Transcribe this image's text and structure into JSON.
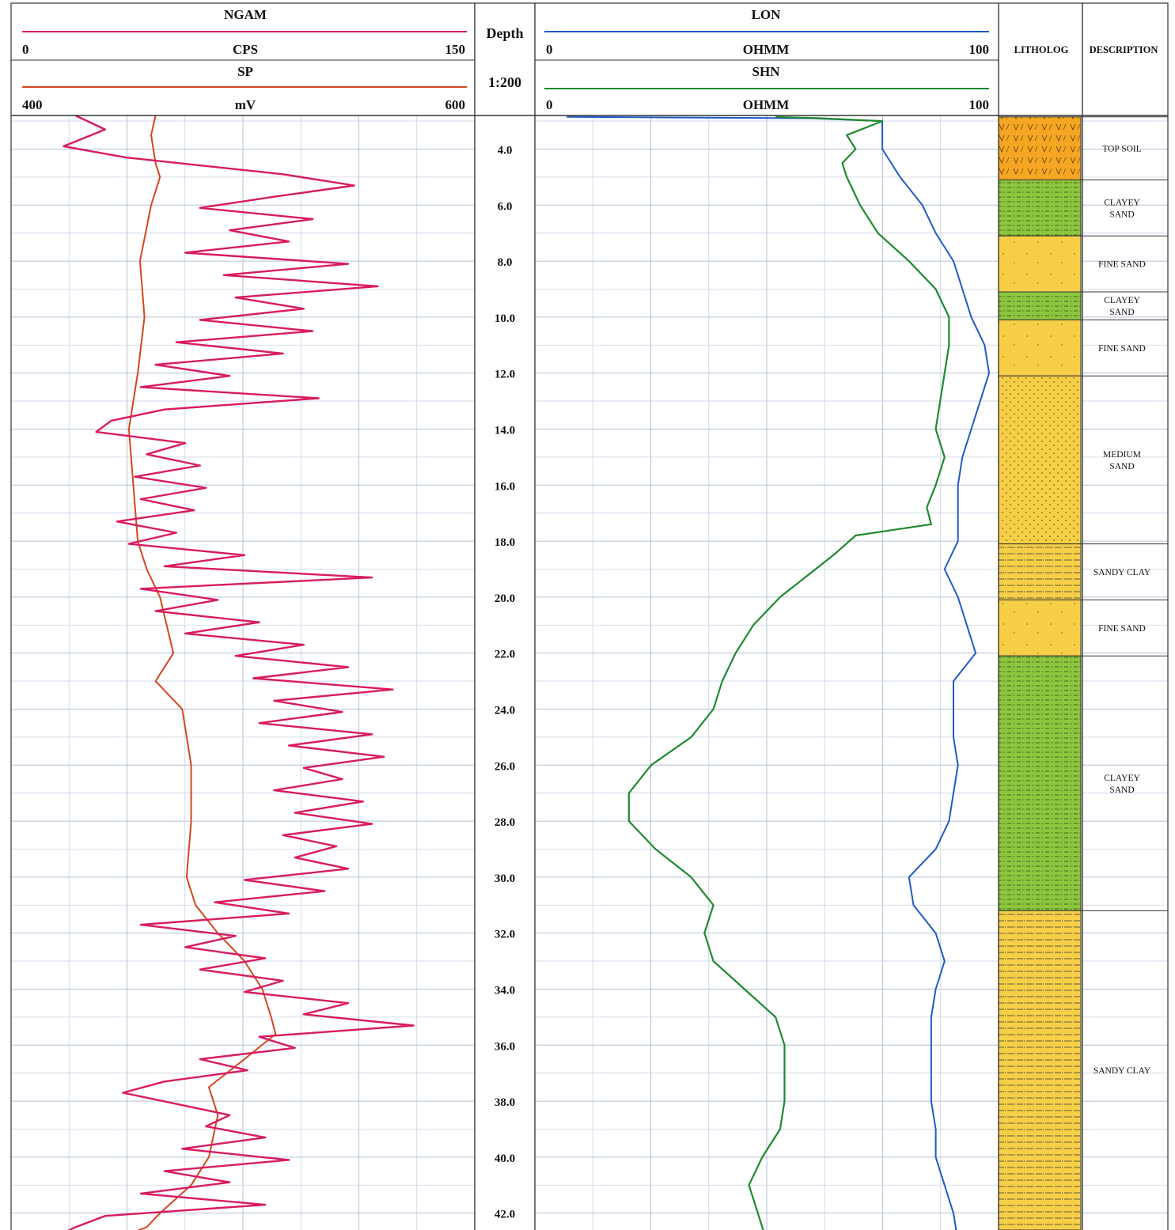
{
  "chart_data": {
    "type": "well-log",
    "depth_track": {
      "title": "Depth",
      "scale": "1:200",
      "range": [
        2.8,
        43.0
      ],
      "ticks": [
        "4.0",
        "6.0",
        "8.0",
        "10.0",
        "12.0",
        "14.0",
        "16.0",
        "18.0",
        "20.0",
        "22.0",
        "24.0",
        "26.0",
        "28.0",
        "30.0",
        "32.0",
        "34.0",
        "36.0",
        "38.0",
        "40.0",
        "42.0"
      ]
    },
    "track1": {
      "curves": [
        {
          "name": "NGAM",
          "unit": "CPS",
          "min": "0",
          "max": "150",
          "range": [
            0,
            150
          ],
          "color": "#d81b60",
          "depth": [
            2.8,
            3.3,
            3.9,
            4.3,
            4.9,
            5.3,
            5.7,
            6.1,
            6.5,
            6.9,
            7.3,
            7.7,
            8.1,
            8.5,
            8.9,
            9.3,
            9.7,
            10.1,
            10.5,
            10.9,
            11.3,
            11.7,
            12.1,
            12.5,
            12.9,
            13.3,
            13.7,
            14.1,
            14.5,
            14.9,
            15.3,
            15.7,
            16.1,
            16.5,
            16.9,
            17.3,
            17.7,
            18.1,
            18.5,
            18.9,
            19.3,
            19.7,
            20.1,
            20.5,
            20.9,
            21.3,
            21.7,
            22.1,
            22.5,
            22.9,
            23.3,
            23.7,
            24.1,
            24.5,
            24.9,
            25.3,
            25.7,
            26.1,
            26.5,
            26.9,
            27.3,
            27.7,
            28.1,
            28.5,
            28.9,
            29.3,
            29.7,
            30.1,
            30.5,
            30.9,
            31.3,
            31.7,
            32.1,
            32.5,
            32.9,
            33.3,
            33.7,
            34.1,
            34.5,
            34.9,
            35.3,
            35.7,
            36.1,
            36.5,
            36.9,
            37.3,
            37.7,
            38.1,
            38.5,
            38.9,
            39.3,
            39.7,
            40.1,
            40.5,
            40.9,
            41.3,
            41.7,
            42.1,
            42.5,
            42.9
          ],
          "value": [
            18,
            28,
            14,
            35,
            88,
            112,
            85,
            60,
            98,
            70,
            90,
            55,
            110,
            68,
            120,
            72,
            95,
            60,
            98,
            52,
            88,
            45,
            70,
            40,
            100,
            48,
            30,
            25,
            55,
            42,
            60,
            38,
            62,
            40,
            58,
            32,
            52,
            36,
            75,
            48,
            118,
            40,
            66,
            45,
            80,
            55,
            95,
            72,
            110,
            78,
            125,
            85,
            108,
            80,
            118,
            90,
            122,
            95,
            108,
            85,
            115,
            92,
            118,
            88,
            106,
            92,
            110,
            75,
            102,
            65,
            90,
            40,
            72,
            55,
            82,
            60,
            88,
            75,
            110,
            95,
            132,
            80,
            92,
            60,
            76,
            48,
            34,
            52,
            70,
            62,
            82,
            54,
            90,
            48,
            70,
            40,
            82,
            28,
            18,
            10
          ]
        },
        {
          "name": "SP",
          "unit": "mV",
          "min": "400",
          "max": "600",
          "range": [
            400,
            600
          ],
          "color": "#d6451e",
          "depth": [
            2.8,
            3.5,
            4.5,
            5.0,
            6.0,
            8.0,
            10.0,
            12.0,
            13.0,
            14.0,
            16.0,
            18.0,
            19.0,
            20.0,
            22.0,
            23.0,
            24.0,
            26.0,
            28.0,
            30.0,
            31.0,
            32.0,
            33.0,
            34.0,
            35.0,
            35.6,
            36.5,
            37.5,
            38.5,
            40.0,
            41.0,
            42.0,
            42.5,
            43.0
          ],
          "value": [
            460,
            458,
            460,
            462,
            458,
            453,
            455,
            452,
            450,
            448,
            450,
            452,
            456,
            462,
            468,
            460,
            472,
            476,
            476,
            474,
            478,
            488,
            500,
            508,
            512,
            514,
            500,
            484,
            488,
            484,
            476,
            462,
            456,
            440
          ]
        }
      ]
    },
    "track2": {
      "curves": [
        {
          "name": "LON",
          "unit": "OHMM",
          "min": "0",
          "max": "100",
          "range": [
            0,
            100
          ],
          "color": "#1e5bc6",
          "depth": [
            2.85,
            2.9,
            3.0,
            4.0,
            5.0,
            6.0,
            7.0,
            8.0,
            9.0,
            10.0,
            11.0,
            12.0,
            13.0,
            14.0,
            15.0,
            16.0,
            17.0,
            18.0,
            19.0,
            20.0,
            21.0,
            22.0,
            23.0,
            24.0,
            25.0,
            26.0,
            27.0,
            28.0,
            29.0,
            30.0,
            31.0,
            32.0,
            33.0,
            34.0,
            35.0,
            36.0,
            37.0,
            38.0,
            39.0,
            40.0,
            41.0,
            42.0,
            43.0
          ],
          "value": [
            5,
            60,
            76,
            76,
            80,
            85,
            88,
            92,
            94,
            96,
            99,
            100,
            98,
            96,
            94,
            93,
            93,
            93,
            90,
            93,
            95,
            97,
            92,
            92,
            92,
            93,
            92,
            91,
            88,
            82,
            83,
            88,
            90,
            88,
            87,
            87,
            87,
            87,
            88,
            88,
            90,
            92,
            93
          ]
        },
        {
          "name": "SHN",
          "unit": "OHMM",
          "min": "0",
          "max": "100",
          "range": [
            0,
            100
          ],
          "color": "#1f8a2f",
          "depth": [
            2.85,
            2.9,
            3.0,
            3.5,
            4.0,
            4.5,
            5.0,
            6.0,
            7.0,
            8.0,
            9.0,
            10.0,
            11.0,
            12.0,
            13.0,
            14.0,
            15.0,
            16.0,
            16.8,
            17.4,
            17.8,
            18.5,
            20.0,
            21.0,
            22.0,
            23.0,
            24.0,
            25.0,
            26.0,
            27.0,
            28.0,
            29.0,
            30.0,
            31.0,
            32.0,
            33.0,
            34.0,
            35.0,
            36.0,
            37.0,
            38.0,
            39.0,
            40.0,
            41.0,
            42.0,
            43.0
          ],
          "value": [
            52,
            62,
            76,
            68,
            70,
            67,
            68,
            71,
            75,
            82,
            88,
            91,
            91,
            90,
            89,
            88,
            90,
            88,
            86,
            87,
            70,
            65,
            53,
            47,
            43,
            40,
            38,
            33,
            24,
            19,
            19,
            25,
            33,
            38,
            36,
            38,
            45,
            52,
            54,
            54,
            54,
            53,
            49,
            46,
            48,
            50
          ]
        }
      ]
    },
    "lithology": {
      "title": "LITHOLOG",
      "description_title": "DESCRIPTION",
      "layers": [
        {
          "top": 2.85,
          "base": 5.1,
          "type": "top-soil",
          "label": [
            "TOP SOIL"
          ]
        },
        {
          "top": 5.1,
          "base": 7.1,
          "type": "clayey-sand",
          "label": [
            "CLAYEY",
            "SAND"
          ]
        },
        {
          "top": 7.1,
          "base": 9.1,
          "type": "fine-sand",
          "label": [
            "FINE SAND"
          ]
        },
        {
          "top": 9.1,
          "base": 10.1,
          "type": "clayey-sand",
          "label": [
            "CLAYEY",
            "SAND"
          ]
        },
        {
          "top": 10.1,
          "base": 12.1,
          "type": "fine-sand",
          "label": [
            "FINE SAND"
          ]
        },
        {
          "top": 12.1,
          "base": 18.1,
          "type": "medium-sand",
          "label": [
            "MEDIUM",
            "SAND"
          ]
        },
        {
          "top": 18.1,
          "base": 20.1,
          "type": "sandy-clay",
          "label": [
            "SANDY CLAY"
          ]
        },
        {
          "top": 20.1,
          "base": 22.1,
          "type": "fine-sand",
          "label": [
            "FINE SAND"
          ]
        },
        {
          "top": 22.1,
          "base": 31.2,
          "type": "clayey-sand",
          "label": [
            "CLAYEY",
            "SAND"
          ]
        },
        {
          "top": 31.2,
          "base": 42.9,
          "type": "sandy-clay",
          "label": [
            "SANDY CLAY"
          ]
        },
        {
          "top": 42.9,
          "base": 43.2,
          "type": "medium-sand",
          "label": []
        }
      ]
    },
    "colors": {
      "top_soil": "#f5a623",
      "clayey_sand": "#8cc63f",
      "sand": "#f6cf47",
      "grid": "#c8d3e6"
    }
  }
}
